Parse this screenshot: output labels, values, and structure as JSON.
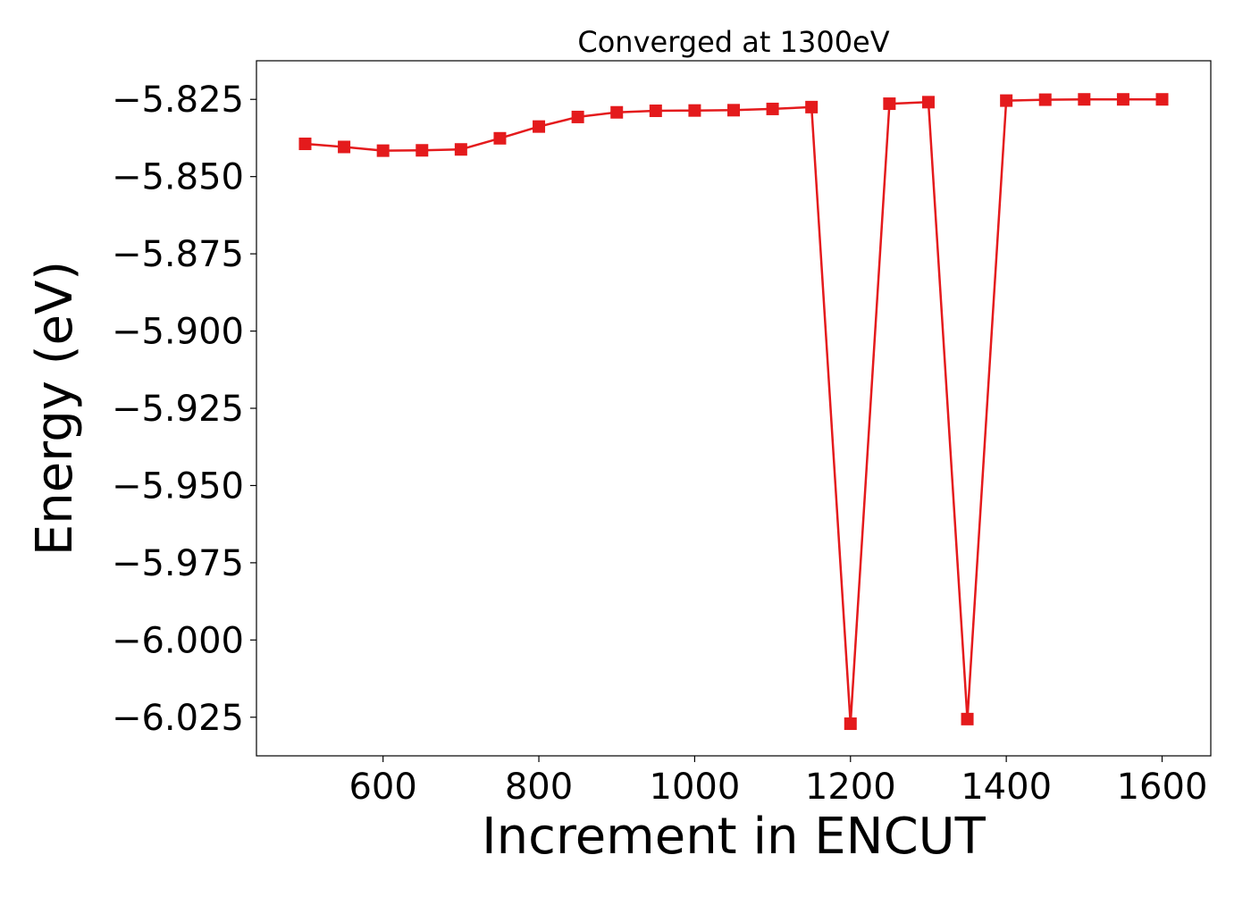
{
  "chart_data": {
    "type": "line",
    "title": "Converged at 1300eV",
    "xlabel": "Increment in ENCUT",
    "ylabel": "Energy (eV)",
    "xlim": [
      437.5,
      1662.5
    ],
    "ylim": [
      -6.0375,
      -5.8125
    ],
    "x_ticks": [
      600,
      800,
      1000,
      1200,
      1400,
      1600
    ],
    "y_ticks": [
      -5.825,
      -5.85,
      -5.875,
      -5.9,
      -5.925,
      -5.95,
      -5.975,
      -6.0,
      -6.025
    ],
    "y_tick_labels": [
      "−5.825",
      "−5.850",
      "−5.875",
      "−5.900",
      "−5.925",
      "−5.950",
      "−5.975",
      "−6.000",
      "−6.025"
    ],
    "x_tick_labels": [
      "600",
      "800",
      "1000",
      "1200",
      "1400",
      "1600"
    ],
    "grid": false,
    "series": [
      {
        "color": "#e41a1c",
        "marker": "square",
        "x": [
          500,
          550,
          600,
          650,
          700,
          750,
          800,
          850,
          900,
          950,
          1000,
          1050,
          1100,
          1150,
          1200,
          1250,
          1300,
          1350,
          1400,
          1450,
          1500,
          1550,
          1600
        ],
        "y": [
          -5.8394,
          -5.8404,
          -5.8416,
          -5.8415,
          -5.8412,
          -5.8376,
          -5.8338,
          -5.8307,
          -5.8292,
          -5.8287,
          -5.8286,
          -5.8285,
          -5.8281,
          -5.8275,
          -6.0271,
          -5.8264,
          -5.8259,
          -6.0256,
          -5.8254,
          -5.8251,
          -5.825,
          -5.825,
          -5.825
        ]
      }
    ]
  }
}
